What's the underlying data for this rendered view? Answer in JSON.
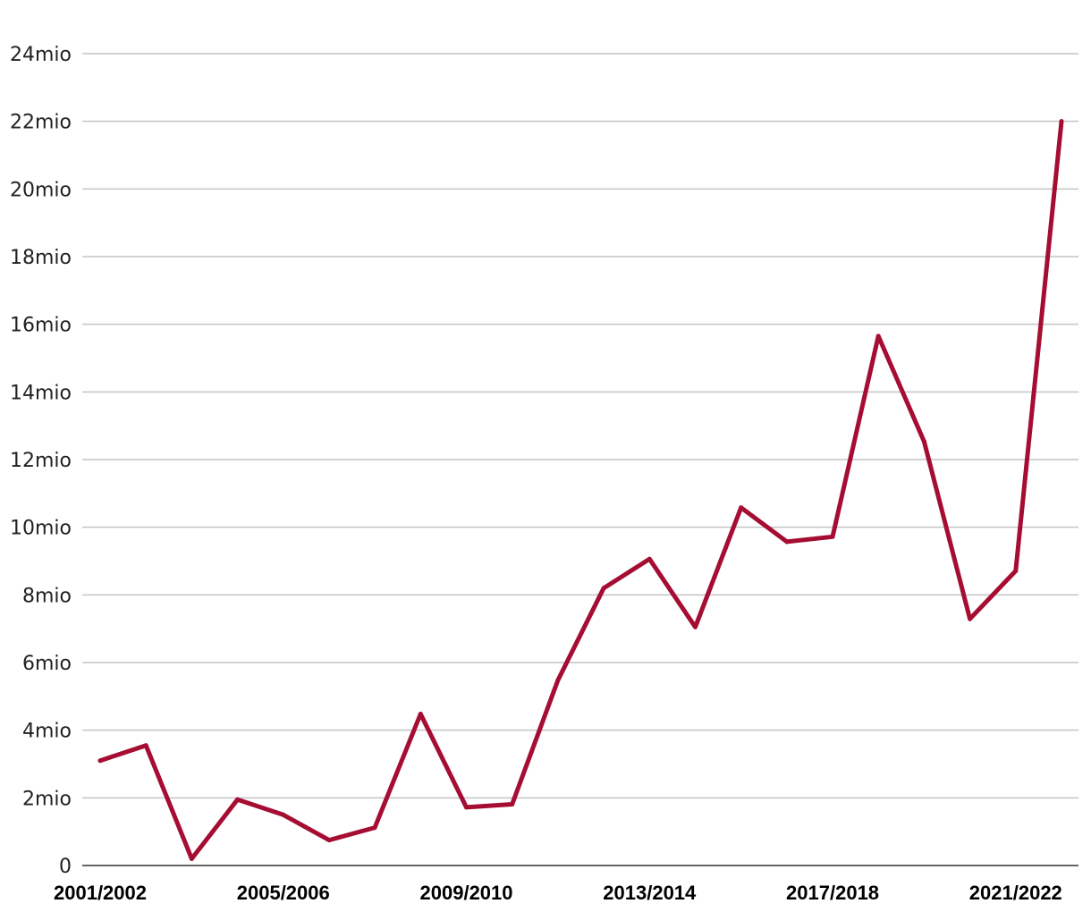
{
  "chart_data": {
    "type": "line",
    "title": "",
    "xlabel": "",
    "ylabel": "",
    "ylim": [
      0,
      24000000
    ],
    "grid": true,
    "legend": "none",
    "y_ticks": [
      {
        "value": 0,
        "label": "0"
      },
      {
        "value": 2000000,
        "label": "2mio"
      },
      {
        "value": 4000000,
        "label": "4mio"
      },
      {
        "value": 6000000,
        "label": "6mio"
      },
      {
        "value": 8000000,
        "label": "8mio"
      },
      {
        "value": 10000000,
        "label": "10mio"
      },
      {
        "value": 12000000,
        "label": "12mio"
      },
      {
        "value": 14000000,
        "label": "14mio"
      },
      {
        "value": 16000000,
        "label": "16mio"
      },
      {
        "value": 18000000,
        "label": "18mio"
      },
      {
        "value": 20000000,
        "label": "20mio"
      },
      {
        "value": 22000000,
        "label": "22mio"
      },
      {
        "value": 24000000,
        "label": "24mio"
      }
    ],
    "x_tick_labels": [
      "2001/2002",
      "2005/2006",
      "2009/2010",
      "2013/2014",
      "2017/2018",
      "2021/2022"
    ],
    "categories": [
      "2001/2002",
      "2002/2003",
      "2003/2004",
      "2004/2005",
      "2005/2006",
      "2006/2007",
      "2007/2008",
      "2008/2009",
      "2009/2010",
      "2010/2011",
      "2011/2012",
      "2012/2013",
      "2013/2014",
      "2014/2015",
      "2015/2016",
      "2016/2017",
      "2017/2018",
      "2018/2019",
      "2019/2020",
      "2020/2021",
      "2021/2022",
      "2022/2023"
    ],
    "series": [
      {
        "color": "#a50d32",
        "values": [
          3100000,
          3550000,
          200000,
          1950000,
          1500000,
          750000,
          1120000,
          4480000,
          1720000,
          1810000,
          5480000,
          8200000,
          9060000,
          7050000,
          10580000,
          9570000,
          9720000,
          15650000,
          12530000,
          7290000,
          8710000,
          22000000
        ]
      }
    ]
  }
}
